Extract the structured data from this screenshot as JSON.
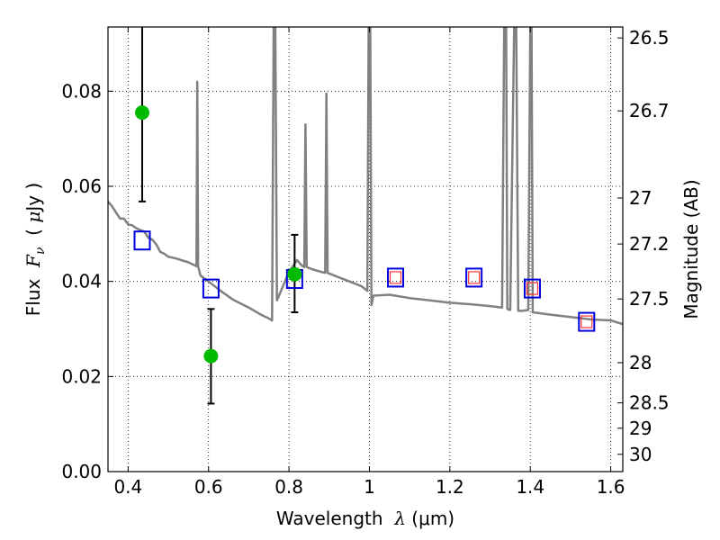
{
  "chart_data": {
    "type": "scatter",
    "xlabel": {
      "prefix": "Wavelength  ",
      "symbol": "λ",
      "unit": " (μm)"
    },
    "ylabel": {
      "prefix": "Flux  ",
      "symbol": "F",
      "sub": "ν",
      "unit_open": "  ( ",
      "mu": "μ",
      "unit": "Jy )"
    },
    "ylabel_right": "Magnitude (AB)",
    "xlim": [
      0.35,
      1.63
    ],
    "ylim": [
      0.0,
      0.0935
    ],
    "grid": true,
    "x_ticks": [
      "0.4",
      "0.6",
      "0.8",
      "1",
      "1.2",
      "1.4",
      "1.6"
    ],
    "y_ticks": [
      "0.00",
      "0.02",
      "0.04",
      "0.06",
      "0.08"
    ],
    "right_ticks": [
      "26.5",
      "26.7",
      "27",
      "27.2",
      "27.5",
      "28",
      "28.5",
      "29",
      "30"
    ],
    "colors": {
      "model": "#808080",
      "observed": "#00bb00",
      "model_phot": "#0000dd",
      "inner_square": "#ff3333",
      "errorbar": "#000000"
    },
    "observed_points": [
      {
        "x": 0.435,
        "y": 0.0755,
        "ylo": 0.0568,
        "yhi": 0.0935
      },
      {
        "x": 0.606,
        "y": 0.0243,
        "ylo": 0.0143,
        "yhi": 0.0342
      },
      {
        "x": 0.814,
        "y": 0.0415,
        "ylo": 0.0335,
        "yhi": 0.0498
      }
    ],
    "model_photometry": [
      {
        "x": 0.435,
        "y": 0.0486,
        "inner": false
      },
      {
        "x": 0.606,
        "y": 0.0385,
        "inner": false
      },
      {
        "x": 0.814,
        "y": 0.0405,
        "inner": false
      },
      {
        "x": 1.065,
        "y": 0.0408,
        "inner": true
      },
      {
        "x": 1.26,
        "y": 0.0408,
        "inner": true
      },
      {
        "x": 1.405,
        "y": 0.0385,
        "inner": true
      },
      {
        "x": 1.54,
        "y": 0.0315,
        "inner": true
      }
    ],
    "model_spectrum": [
      [
        0.35,
        0.0568
      ],
      [
        0.36,
        0.0558
      ],
      [
        0.37,
        0.0545
      ],
      [
        0.38,
        0.0532
      ],
      [
        0.39,
        0.0532
      ],
      [
        0.4,
        0.052
      ],
      [
        0.41,
        0.0518
      ],
      [
        0.42,
        0.0512
      ],
      [
        0.43,
        0.0508
      ],
      [
        0.44,
        0.0505
      ],
      [
        0.45,
        0.0492
      ],
      [
        0.46,
        0.0488
      ],
      [
        0.47,
        0.0478
      ],
      [
        0.48,
        0.0462
      ],
      [
        0.49,
        0.0458
      ],
      [
        0.5,
        0.0452
      ],
      [
        0.52,
        0.0448
      ],
      [
        0.55,
        0.044
      ],
      [
        0.57,
        0.0432
      ],
      [
        0.572,
        0.082
      ],
      [
        0.574,
        0.0432
      ],
      [
        0.58,
        0.0412
      ],
      [
        0.6,
        0.04
      ],
      [
        0.63,
        0.038
      ],
      [
        0.66,
        0.0362
      ],
      [
        0.7,
        0.0345
      ],
      [
        0.73,
        0.033
      ],
      [
        0.75,
        0.0322
      ],
      [
        0.758,
        0.0318
      ],
      [
        0.762,
        0.0935
      ],
      [
        0.766,
        0.0935
      ],
      [
        0.77,
        0.036
      ],
      [
        0.78,
        0.038
      ],
      [
        0.8,
        0.042
      ],
      [
        0.82,
        0.0445
      ],
      [
        0.83,
        0.0435
      ],
      [
        0.838,
        0.043
      ],
      [
        0.841,
        0.073
      ],
      [
        0.844,
        0.043
      ],
      [
        0.86,
        0.0425
      ],
      [
        0.88,
        0.042
      ],
      [
        0.89,
        0.0418
      ],
      [
        0.893,
        0.0795
      ],
      [
        0.896,
        0.0418
      ],
      [
        0.92,
        0.041
      ],
      [
        0.95,
        0.04
      ],
      [
        0.98,
        0.039
      ],
      [
        0.995,
        0.038
      ],
      [
        0.998,
        0.0935
      ],
      [
        1.002,
        0.0935
      ],
      [
        1.005,
        0.035
      ],
      [
        1.01,
        0.037
      ],
      [
        1.05,
        0.0372
      ],
      [
        1.1,
        0.0365
      ],
      [
        1.15,
        0.036
      ],
      [
        1.2,
        0.0355
      ],
      [
        1.25,
        0.0352
      ],
      [
        1.3,
        0.0348
      ],
      [
        1.33,
        0.0345
      ],
      [
        1.335,
        0.0935
      ],
      [
        1.34,
        0.0935
      ],
      [
        1.343,
        0.0342
      ],
      [
        1.35,
        0.034
      ],
      [
        1.36,
        0.0935
      ],
      [
        1.365,
        0.0935
      ],
      [
        1.37,
        0.0338
      ],
      [
        1.38,
        0.0338
      ],
      [
        1.395,
        0.034
      ],
      [
        1.4,
        0.0935
      ],
      [
        1.403,
        0.0935
      ],
      [
        1.406,
        0.0335
      ],
      [
        1.45,
        0.033
      ],
      [
        1.5,
        0.0325
      ],
      [
        1.55,
        0.032
      ],
      [
        1.6,
        0.0318
      ],
      [
        1.63,
        0.031
      ]
    ]
  }
}
